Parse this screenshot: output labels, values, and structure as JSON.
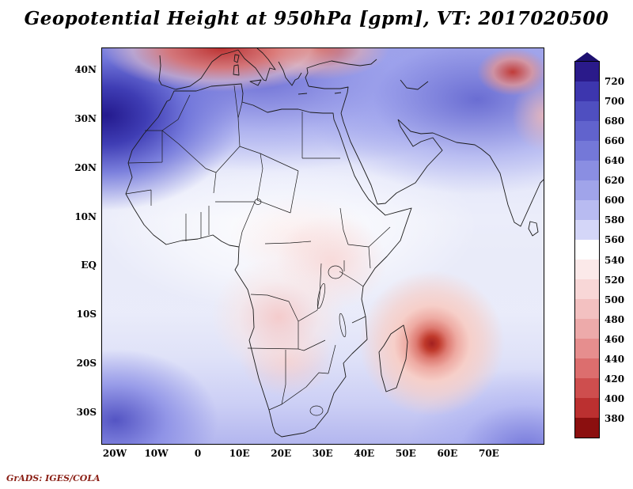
{
  "title": "Geopotential Height at 950hPa [gpm], VT: 2017020500",
  "footer": "GrADS: IGES/COLA",
  "axes": {
    "lat": [
      "40N",
      "30N",
      "20N",
      "10N",
      "EQ",
      "10S",
      "20S",
      "30S"
    ],
    "lon": [
      "20W",
      "10W",
      "0",
      "10E",
      "20E",
      "30E",
      "40E",
      "50E",
      "60E",
      "70E"
    ]
  },
  "colorbar": {
    "labels": [
      "720",
      "700",
      "680",
      "660",
      "640",
      "620",
      "600",
      "580",
      "560",
      "540",
      "520",
      "500",
      "480",
      "460",
      "440",
      "420",
      "400",
      "380"
    ],
    "colors": [
      "#2a1a8a",
      "#3d36ae",
      "#4f4fc0",
      "#6163cd",
      "#7478d8",
      "#8a8ee2",
      "#a0a4ea",
      "#b8bbf1",
      "#d4d6f8",
      "#ffffff",
      "#fbe9e9",
      "#f8d7d7",
      "#f3c1c1",
      "#edaaaa",
      "#e68e8e",
      "#dc6e6e",
      "#ce4e4e",
      "#bb3030",
      "#8b0f0f"
    ],
    "arrow_color": "#1d1070"
  },
  "colors": {
    "outline": "#1a1a1a",
    "background": "#ffffff",
    "stamp_text": "#8b2016",
    "high_extreme": "#2a1a8a",
    "low_extreme": "#8b0f0f"
  },
  "chart_data": {
    "type": "heatmap",
    "title": "Geopotential Height at 950hPa [gpm], VT: 2017020500",
    "variable": "Geopotential Height",
    "level_hPa": 950,
    "units": "gpm",
    "valid_time": "2017020500",
    "region": "Africa / surrounding oceans",
    "lon_ticks": [
      "20W",
      "10W",
      "0",
      "10E",
      "20E",
      "30E",
      "40E",
      "50E",
      "60E",
      "70E"
    ],
    "lat_ticks": [
      "40N",
      "30N",
      "20N",
      "10N",
      "EQ",
      "10S",
      "20S",
      "30S"
    ],
    "lon_range_deg": [
      -23,
      83
    ],
    "lat_range_deg": [
      -36,
      44.5
    ],
    "color_scale": {
      "min": 380,
      "max": 720,
      "step": 20,
      "low_color": "dark red",
      "mid_color": "white (540-560)",
      "high_color": "dark blue"
    },
    "features": [
      {
        "feature": "subtropical high (Azores ridge)",
        "approx_lon": -20,
        "approx_lat": 32,
        "approx_value_gpm": 720
      },
      {
        "feature": "deep extratropical lows along north edge (Europe)",
        "approx_lon": 12,
        "approx_lat": 44,
        "approx_value_gpm": 430
      },
      {
        "feature": "low near top-right edge (central/south Asia)",
        "approx_lon": 68,
        "approx_lat": 38,
        "approx_value_gpm": 470
      },
      {
        "feature": "high band across North Africa into Arabia",
        "approx_lon": 25,
        "approx_lat": 28,
        "approx_value_gpm": 620
      },
      {
        "feature": "tropical cyclone low east of Madagascar",
        "approx_lon": 57,
        "approx_lat": -17,
        "approx_value_gpm": 440
      },
      {
        "feature": "weak heat lows over Angola/Botswana and East Africa",
        "approx_lon": 22,
        "approx_lat": -15,
        "approx_value_gpm": 530
      },
      {
        "feature": "South Atlantic high (bottom-left)",
        "approx_lon": -17,
        "approx_lat": -33,
        "approx_value_gpm": 670
      },
      {
        "feature": "South Indian Ocean high (bottom-right)",
        "approx_lon": 75,
        "approx_lat": -35,
        "approx_value_gpm": 640
      }
    ],
    "legend_position": "right vertical colorbar",
    "grid": false
  }
}
